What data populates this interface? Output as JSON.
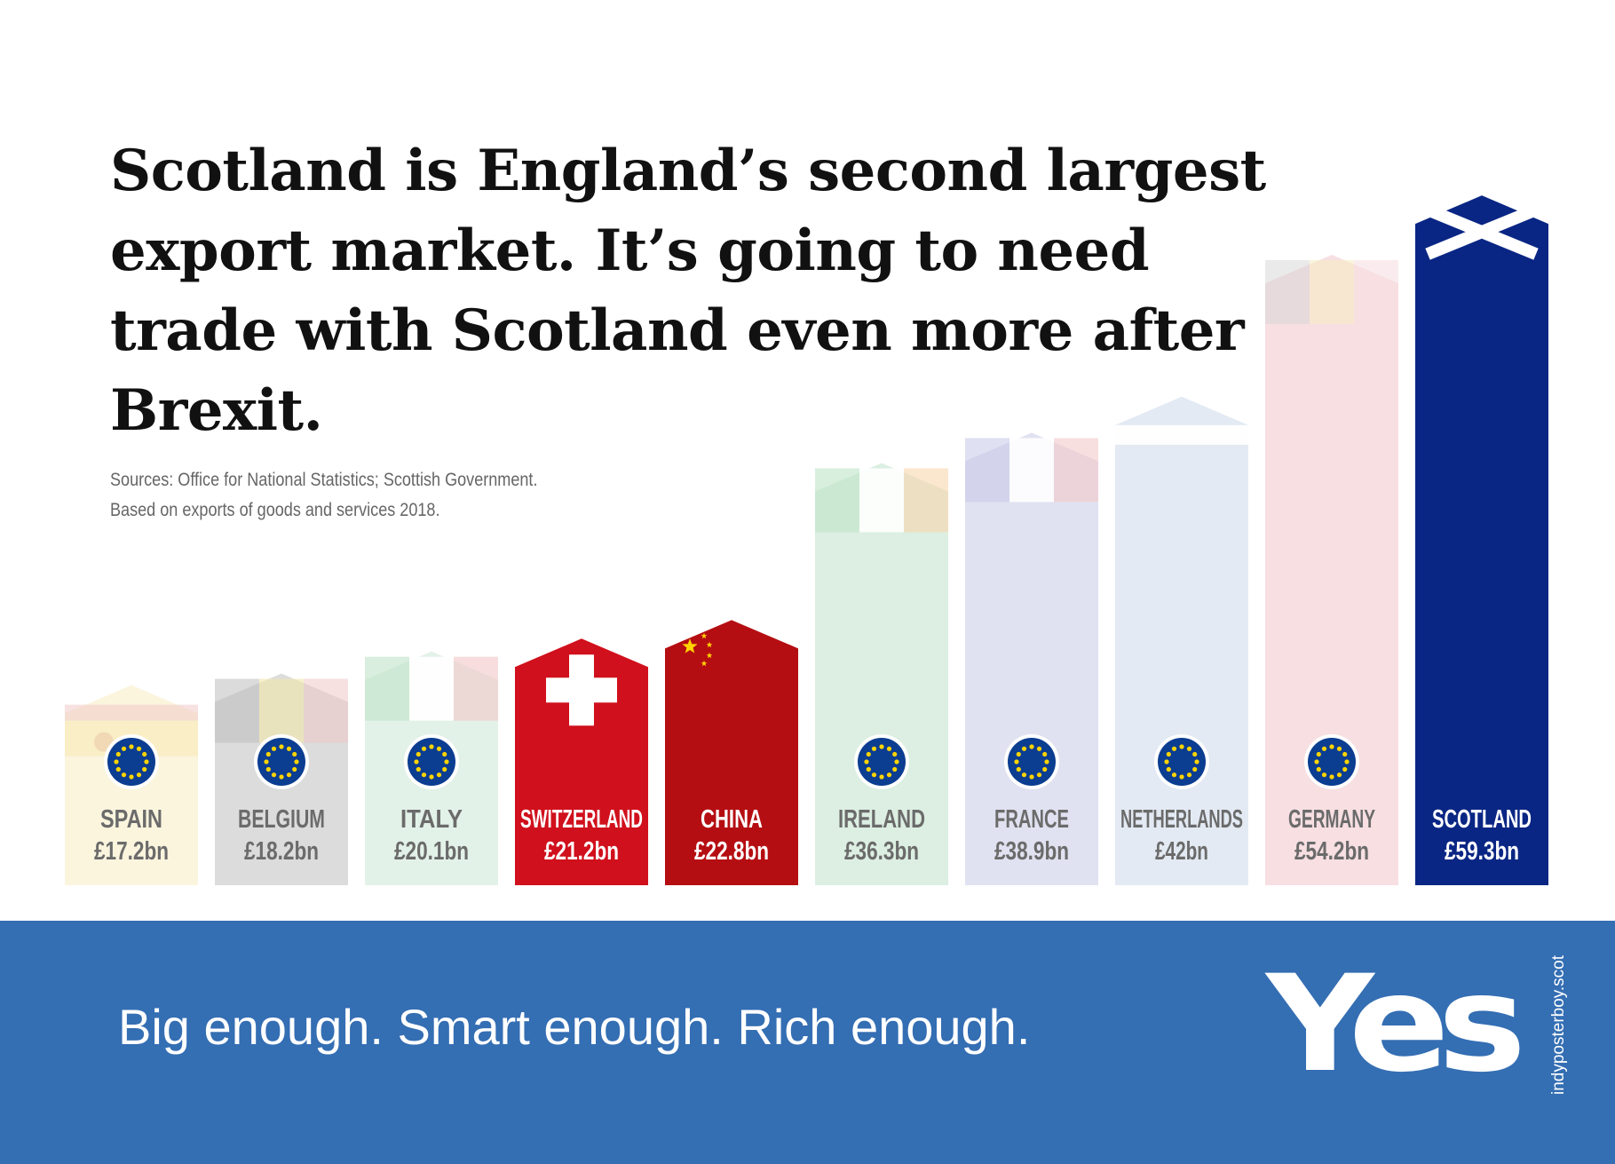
{
  "headline": "Scotland is England’s second largest export market. It’s going to need trade with Scotland even more after Brexit.",
  "sources": [
    "Sources: Office for National Statistics; Scottish Government.",
    "Based on exports of goods and services 2018."
  ],
  "chart_data": {
    "type": "bar",
    "categories": [
      "SPAIN",
      "BELGIUM",
      "ITALY",
      "SWITZERLAND",
      "CHINA",
      "IRELAND",
      "FRANCE",
      "NETHERLANDS",
      "GERMANY",
      "SCOTLAND"
    ],
    "values": [
      17.2,
      18.2,
      20.1,
      21.2,
      22.8,
      36.3,
      38.9,
      42,
      54.2,
      59.3
    ],
    "value_labels": [
      "£17.2bn",
      "£18.2bn",
      "£20.1bn",
      "£21.2bn",
      "£22.8bn",
      "£36.3bn",
      "£38.9bn",
      "£42bn",
      "£54.2bn",
      "£59.3bn"
    ],
    "eu_member": [
      true,
      true,
      true,
      false,
      false,
      true,
      true,
      true,
      true,
      false
    ],
    "bar_colors": [
      "#fbf5de",
      "#dcdcdc",
      "#e3f2e8",
      "#d0101c",
      "#b50e12",
      "#dcefe2",
      "#e1e2f1",
      "#e3eaf3",
      "#f7dfe2",
      "#0a2684"
    ],
    "label_colors": [
      "#6b6b6b",
      "#6b6b6b",
      "#6b6b6b",
      "#ffffff",
      "#ffffff",
      "#6b6b6b",
      "#6b6b6b",
      "#6b6b6b",
      "#6b6b6b",
      "#ffffff"
    ],
    "flag_icons": [
      "spain-flag",
      "belgium-flag",
      "italy-flag",
      "switzerland-flag",
      "china-flag",
      "ireland-flag",
      "france-flag",
      "netherlands-flag",
      "germany-flag",
      "scotland-flag"
    ]
  },
  "footer": {
    "slogan": "Big enough. Smart enough. Rich enough.",
    "logo": "Yes",
    "site": "indyposterboy.scot"
  }
}
